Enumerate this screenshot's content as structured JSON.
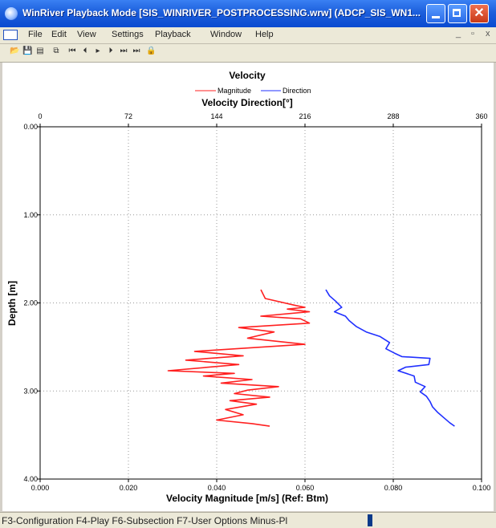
{
  "window": {
    "title": "WinRiver Playback Mode [SIS_WINRIVER_POSTPROCESSING.wrw] (ADCP_SIS_WN1...",
    "min_glyph": "_",
    "max_glyph": "□",
    "close_glyph": "✕"
  },
  "menu": [
    "File",
    "Edit",
    "View",
    "Settings",
    "Playback",
    "Window",
    "Help"
  ],
  "mdi_controls": [
    "_",
    "▫",
    "x"
  ],
  "toolbar": [
    "open-icon",
    "save-icon",
    "properties-icon",
    "copy-icon",
    "first-icon",
    "prev-icon",
    "play-icon",
    "next-icon",
    "step-icon",
    "last-icon",
    "lock-icon"
  ],
  "status": {
    "text": "F3-Configuration   F4-Play   F6-Subsection   F7-User Options   Minus-Pl"
  },
  "colors": {
    "magnitude": "#ff2020",
    "direction": "#2030ff"
  },
  "chart_data": {
    "type": "line",
    "title": "Velocity",
    "top_axis_label": "Velocity Direction[°]",
    "bottom_axis_label": "Velocity Magnitude [m/s] (Ref: Btm)",
    "y_axis_label": "Depth [m]",
    "legend": [
      "Magnitude",
      "Direction"
    ],
    "legend_position": "top-center",
    "grid": true,
    "bottom_ticks": [
      "0.000",
      "0.020",
      "0.040",
      "0.060",
      "0.080",
      "0.100"
    ],
    "top_ticks": [
      "0",
      "72",
      "144",
      "216",
      "288",
      "360"
    ],
    "y_ticks": [
      "0.00",
      "1.00",
      "2.00",
      "3.00",
      "4.00"
    ],
    "x_range_magnitude": [
      0,
      0.1
    ],
    "x_range_direction": [
      0,
      360
    ],
    "y_range": [
      0,
      4
    ],
    "series": [
      {
        "name": "Magnitude",
        "axis": "bottom",
        "points": [
          [
            0.05,
            1.85
          ],
          [
            0.051,
            1.95
          ],
          [
            0.058,
            2.03
          ],
          [
            0.06,
            2.05
          ],
          [
            0.056,
            2.07
          ],
          [
            0.061,
            2.1
          ],
          [
            0.05,
            2.15
          ],
          [
            0.059,
            2.18
          ],
          [
            0.061,
            2.23
          ],
          [
            0.045,
            2.28
          ],
          [
            0.053,
            2.33
          ],
          [
            0.047,
            2.4
          ],
          [
            0.06,
            2.47
          ],
          [
            0.035,
            2.55
          ],
          [
            0.046,
            2.6
          ],
          [
            0.033,
            2.65
          ],
          [
            0.045,
            2.7
          ],
          [
            0.029,
            2.77
          ],
          [
            0.044,
            2.8
          ],
          [
            0.037,
            2.83
          ],
          [
            0.048,
            2.87
          ],
          [
            0.041,
            2.91
          ],
          [
            0.054,
            2.95
          ],
          [
            0.047,
            2.99
          ],
          [
            0.044,
            3.03
          ],
          [
            0.052,
            3.07
          ],
          [
            0.043,
            3.11
          ],
          [
            0.049,
            3.15
          ],
          [
            0.042,
            3.21
          ],
          [
            0.046,
            3.27
          ],
          [
            0.04,
            3.33
          ],
          [
            0.048,
            3.37
          ],
          [
            0.052,
            3.4
          ]
        ]
      },
      {
        "name": "Direction",
        "axis": "top",
        "points": [
          [
            233,
            1.85
          ],
          [
            236,
            1.92
          ],
          [
            241,
            1.98
          ],
          [
            246,
            2.05
          ],
          [
            240,
            2.1
          ],
          [
            249,
            2.15
          ],
          [
            252,
            2.2
          ],
          [
            258,
            2.27
          ],
          [
            266,
            2.33
          ],
          [
            277,
            2.38
          ],
          [
            285,
            2.45
          ],
          [
            282,
            2.52
          ],
          [
            289,
            2.57
          ],
          [
            295,
            2.61
          ],
          [
            318,
            2.63
          ],
          [
            317,
            2.7
          ],
          [
            298,
            2.73
          ],
          [
            292,
            2.77
          ],
          [
            305,
            2.83
          ],
          [
            306,
            2.9
          ],
          [
            314,
            2.95
          ],
          [
            310,
            3.01
          ],
          [
            315,
            3.06
          ],
          [
            318,
            3.12
          ],
          [
            320,
            3.18
          ],
          [
            324,
            3.24
          ],
          [
            329,
            3.3
          ],
          [
            334,
            3.36
          ],
          [
            338,
            3.4
          ]
        ]
      }
    ]
  }
}
